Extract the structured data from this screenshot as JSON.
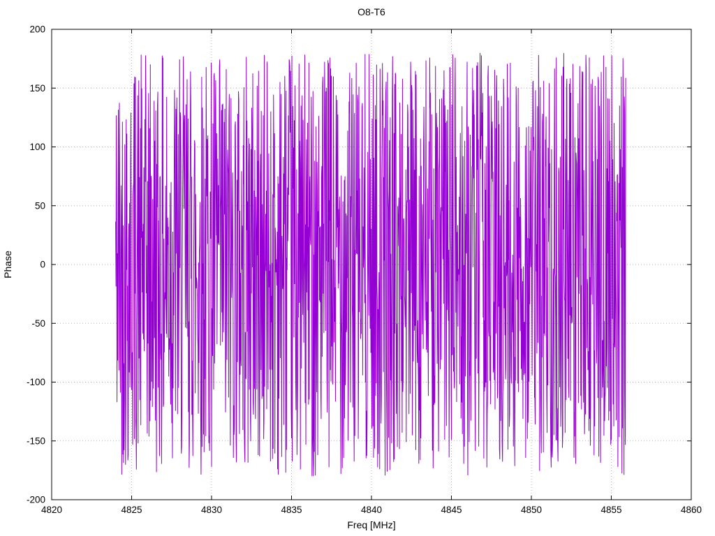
{
  "page": {
    "background": "#ffffff"
  },
  "chart_data": {
    "type": "line",
    "title": "O8-T6",
    "xlabel": "Freq [MHz]",
    "ylabel": "Phase",
    "xlim": [
      4820,
      4860
    ],
    "ylim": [
      -200,
      200
    ],
    "xticks": [
      4820,
      4825,
      4830,
      4835,
      4840,
      4845,
      4850,
      4855,
      4860
    ],
    "yticks": [
      -200,
      -150,
      -100,
      -50,
      0,
      50,
      100,
      150,
      200
    ],
    "grid": "dotted",
    "grid_color": "#b3b3b3",
    "border_color": "#000000",
    "legend": "none",
    "series": [
      {
        "name": "phase",
        "color": "#9400d3",
        "x_start": 4824.0,
        "x_end": 4855.9,
        "n_points": 1500,
        "y_min": -180,
        "y_max": 180,
        "distribution": "uniform-wrapped-phase-noise",
        "seed": 42
      }
    ]
  }
}
